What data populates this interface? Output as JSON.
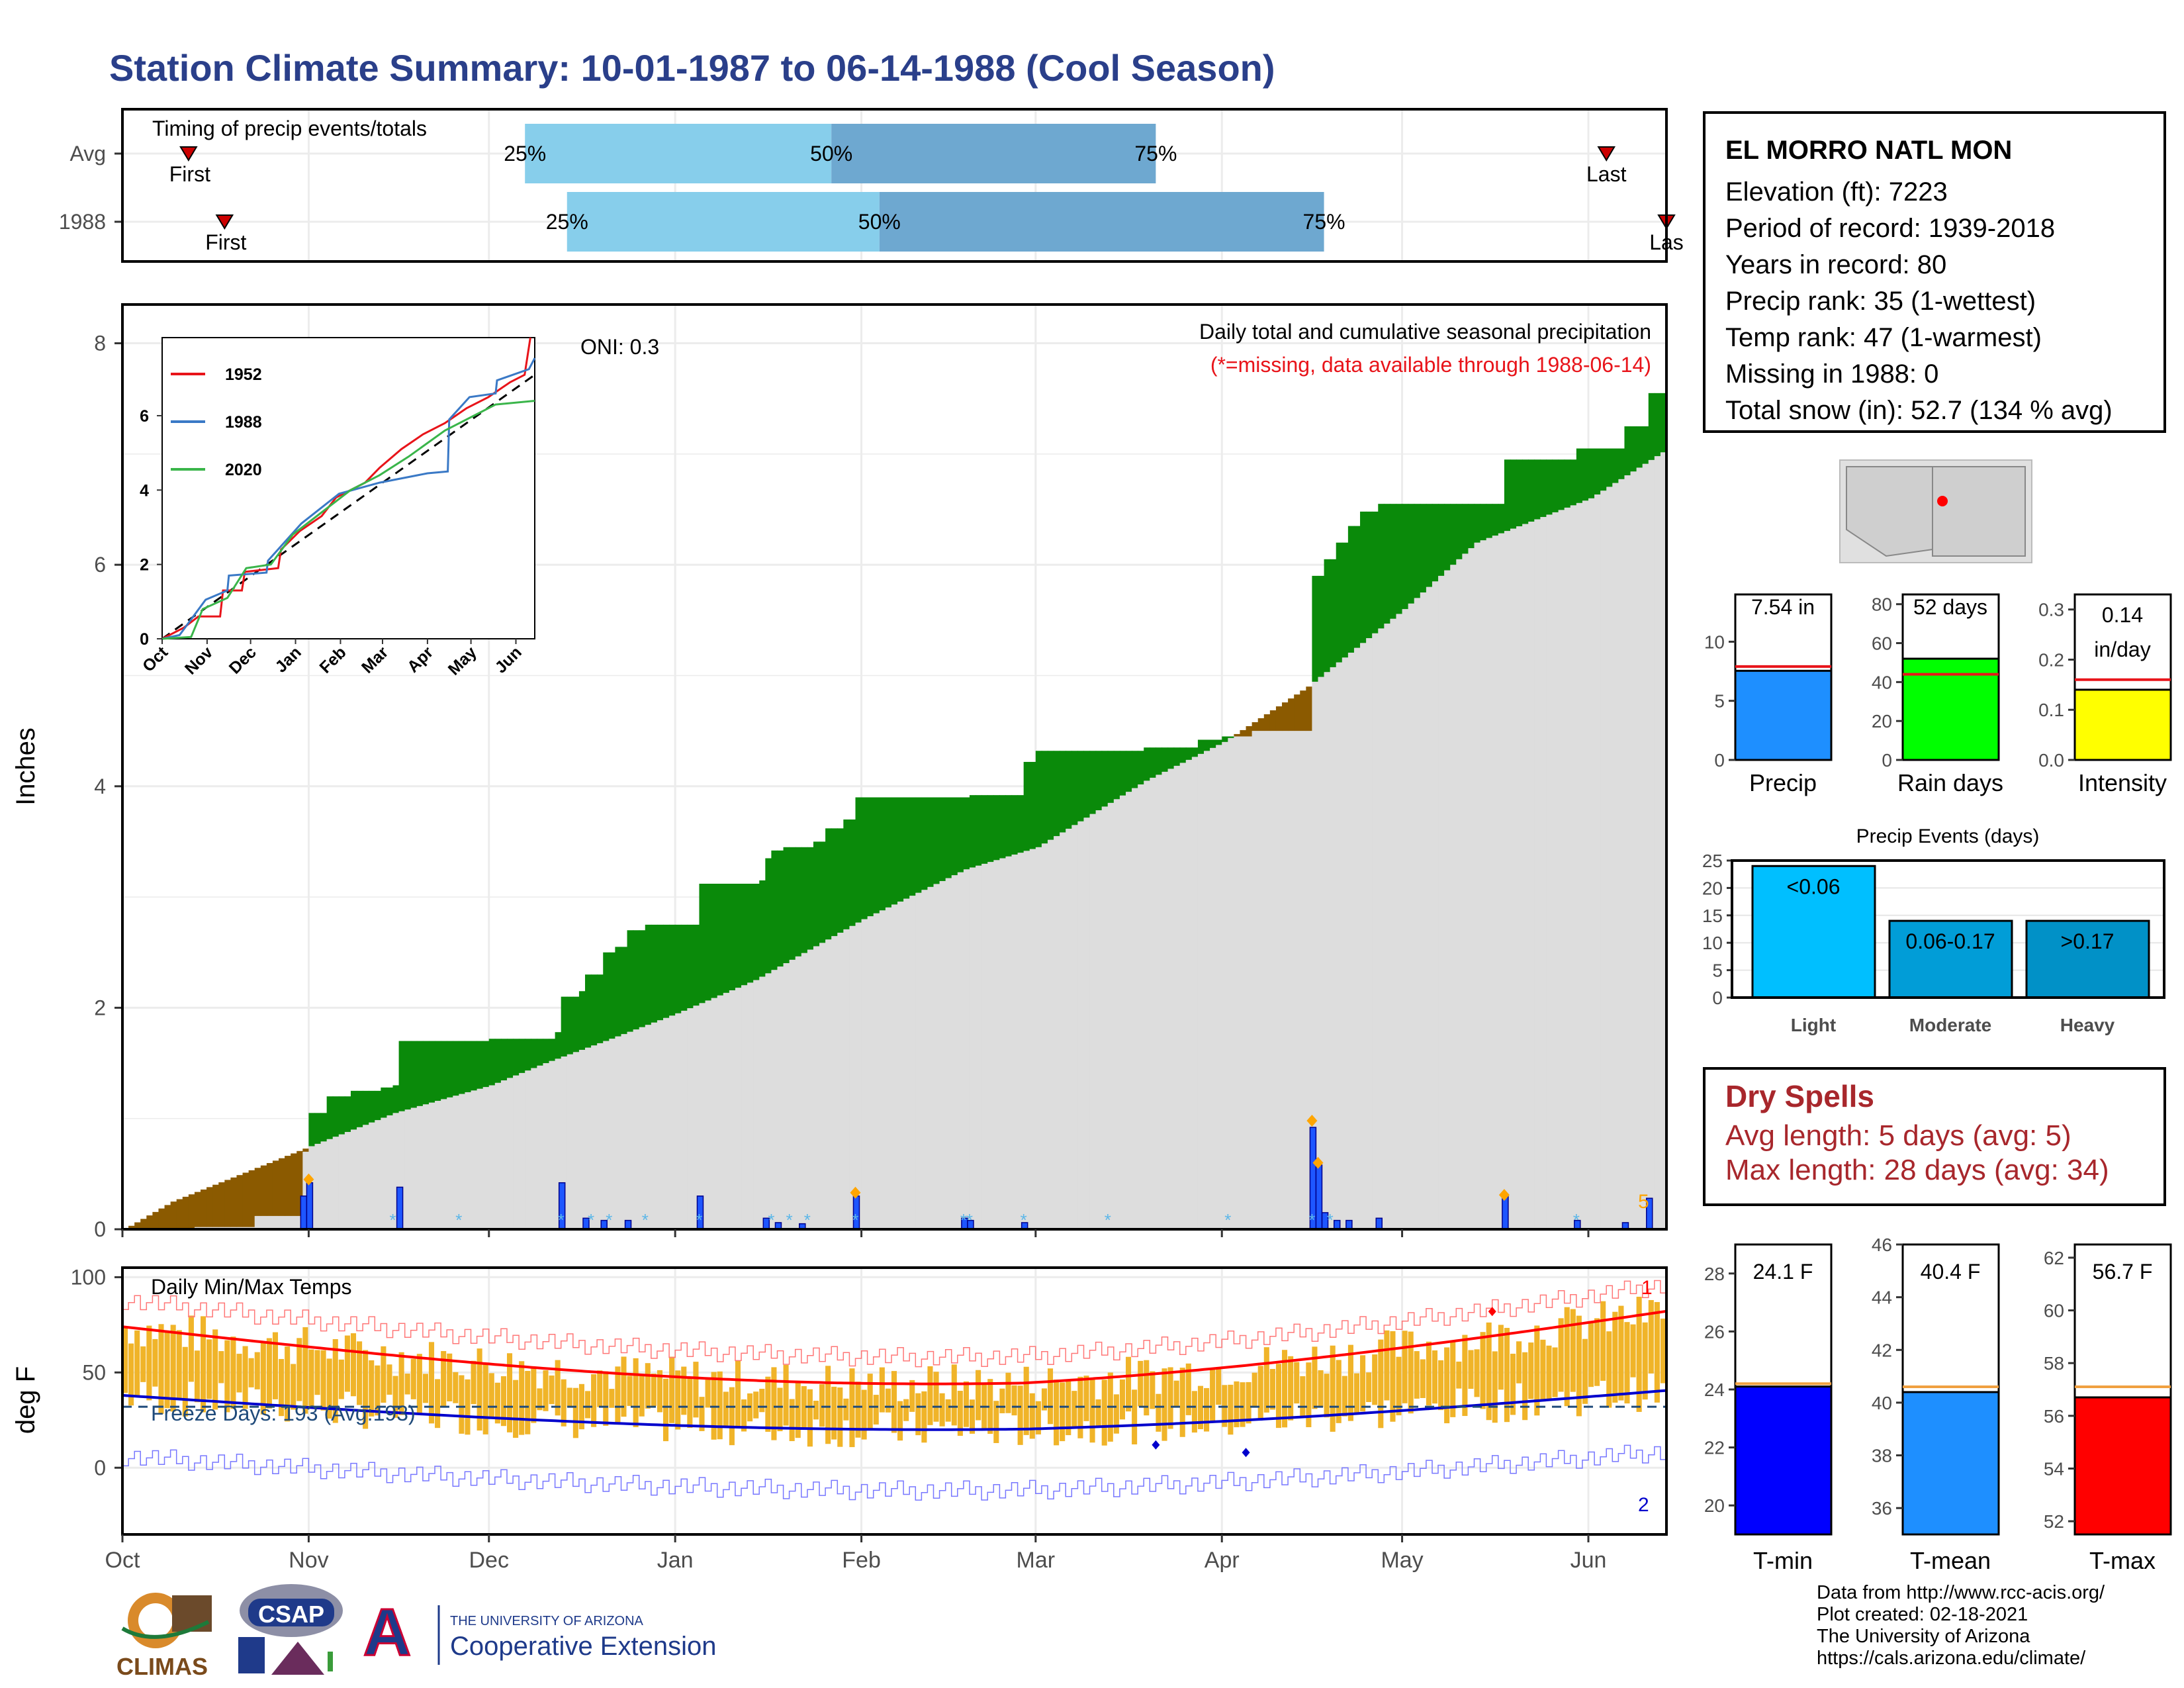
{
  "title": "Station Climate Summary: 10-01-1987 to 06-14-1988 (Cool Season)",
  "timing": {
    "title": "Timing of precip events/totals",
    "rows": [
      {
        "label": "Avg",
        "first": "First",
        "last": "Last",
        "p25": "25%",
        "p50": "50%",
        "p75": "75%",
        "first_doy": 11,
        "p25_doy": 67,
        "p50_doy": 118,
        "p75_doy": 172,
        "last_doy": 247
      },
      {
        "label": "1988",
        "first": "First",
        "last": "Las",
        "p25": "25%",
        "p50": "50%",
        "p75": "75%",
        "first_doy": 17,
        "p25_doy": 74,
        "p50_doy": 126,
        "p75_doy": 200,
        "last_doy": 257
      }
    ]
  },
  "main": {
    "ylabel": "Inches",
    "oni": "ONI: 0.3",
    "caption1": "Daily total and cumulative seasonal precipitation",
    "caption2": "(*=missing, data available through 1988-06-14)",
    "caption2_color": "#e8141a",
    "events_count": "5",
    "yticks": [
      "0",
      "2",
      "4",
      "6",
      "8"
    ]
  },
  "inset": {
    "legend": [
      {
        "name": "1952",
        "color": "#e8141a"
      },
      {
        "name": "1988",
        "color": "#3a79c6"
      },
      {
        "name": "2020",
        "color": "#3ab54a"
      }
    ],
    "yticks": [
      "0",
      "2",
      "4",
      "6"
    ],
    "xticks": [
      "Oct",
      "Nov",
      "Dec",
      "Jan",
      "Feb",
      "Mar",
      "Apr",
      "May",
      "Jun"
    ]
  },
  "temps": {
    "title": "Daily Min/Max Temps",
    "ylabel": "deg F",
    "freeze": "Freeze Days: 193 (Avg:193)",
    "yticks": [
      "0",
      "50",
      "100"
    ],
    "max_marker": "1",
    "min_marker": "2"
  },
  "months": [
    "Oct",
    "Nov",
    "Dec",
    "Jan",
    "Feb",
    "Mar",
    "Apr",
    "May",
    "Jun"
  ],
  "station": {
    "name": "EL MORRO NATL MON",
    "lines": [
      "Elevation (ft): 7223",
      "Period of record: 1939-2018",
      "Years in record: 80",
      "Precip rank: 35 (1-wettest)",
      "Temp rank: 47 (1-warmest)",
      "Missing in 1988: 0",
      "Total snow (in): 52.7 (134 % avg)"
    ]
  },
  "precip_bars": [
    {
      "label": "Precip",
      "value_label": "7.54 in",
      "value": 7.54,
      "avg": 7.9,
      "max": 14,
      "yticks": [
        "0",
        "5",
        "10"
      ],
      "color": "#1e8fff"
    },
    {
      "label": "Rain days",
      "value_label": "52 days",
      "value": 52,
      "avg": 44,
      "max": 85,
      "yticks": [
        "0",
        "20",
        "40",
        "60",
        "80"
      ],
      "color": "#00ff00"
    },
    {
      "label": "Intensity",
      "value_label": "0.14 in/day",
      "value": 0.14,
      "avg": 0.16,
      "max": 0.33,
      "yticks": [
        "0.0",
        "0.1",
        "0.2",
        "0.3"
      ],
      "color": "#ffff00"
    }
  ],
  "events": {
    "title": "Precip Events (days)",
    "yticks": [
      "0",
      "5",
      "10",
      "15",
      "20",
      "25"
    ],
    "bars": [
      {
        "label": "Light",
        "value_label": "<0.06",
        "value": 24,
        "color": "#00bfff"
      },
      {
        "label": "Moderate",
        "value_label": "0.06-0.17",
        "value": 14,
        "color": "#019dd7"
      },
      {
        "label": "Heavy",
        "value_label": ">0.17",
        "value": 14,
        "color": "#0191c7"
      }
    ]
  },
  "dry_spells": {
    "title": "Dry Spells",
    "avg": "Avg length: 5 days (avg: 5)",
    "max": "Max length: 28 days (avg: 34)"
  },
  "temp_bars": [
    {
      "label": "T-min",
      "value_label": "24.1 F",
      "value": 24.1,
      "avg": 24.2,
      "min": 19,
      "max": 29,
      "yticks": [
        "20",
        "22",
        "24",
        "26",
        "28"
      ],
      "color": "#0000ff"
    },
    {
      "label": "T-mean",
      "value_label": "40.4 F",
      "value": 40.4,
      "avg": 40.6,
      "min": 35,
      "max": 46,
      "yticks": [
        "36",
        "38",
        "40",
        "42",
        "44",
        "46"
      ],
      "color": "#1e8fff"
    },
    {
      "label": "T-max",
      "value_label": "56.7 F",
      "value": 56.7,
      "avg": 57.1,
      "min": 51.5,
      "max": 62.5,
      "yticks": [
        "52",
        "54",
        "56",
        "58",
        "60",
        "62"
      ],
      "color": "#ff0000"
    }
  ],
  "logos": {
    "climas": "CLIMAS",
    "csap": "CSAP",
    "ua_small": "THE UNIVERSITY OF ARIZONA",
    "ua_big": "Cooperative Extension",
    "ua_letter": "A"
  },
  "credits": [
    "Data from http://www.rcc-acis.org/",
    "Plot created: 02-18-2021",
    "The University of Arizona",
    "https://cals.arizona.edu/climate/"
  ],
  "chart_data": [
    {
      "type": "area",
      "title": "Daily total and cumulative seasonal precipitation",
      "ylabel": "Inches",
      "ylim": [
        0,
        8.2
      ],
      "x": [
        "Oct",
        "Nov",
        "Dec",
        "Jan",
        "Feb",
        "Mar",
        "Apr",
        "May",
        "Jun"
      ],
      "series": [
        {
          "name": "1988",
          "values": [
            0,
            1.05,
            1.7,
            2.9,
            3.85,
            4.3,
            4.5,
            6.5,
            7.05
          ]
        }
      ]
    },
    {
      "type": "bar",
      "title": "Daily Min/Max Temps",
      "ylabel": "deg F",
      "ylim": [
        -35,
        100
      ]
    }
  ]
}
